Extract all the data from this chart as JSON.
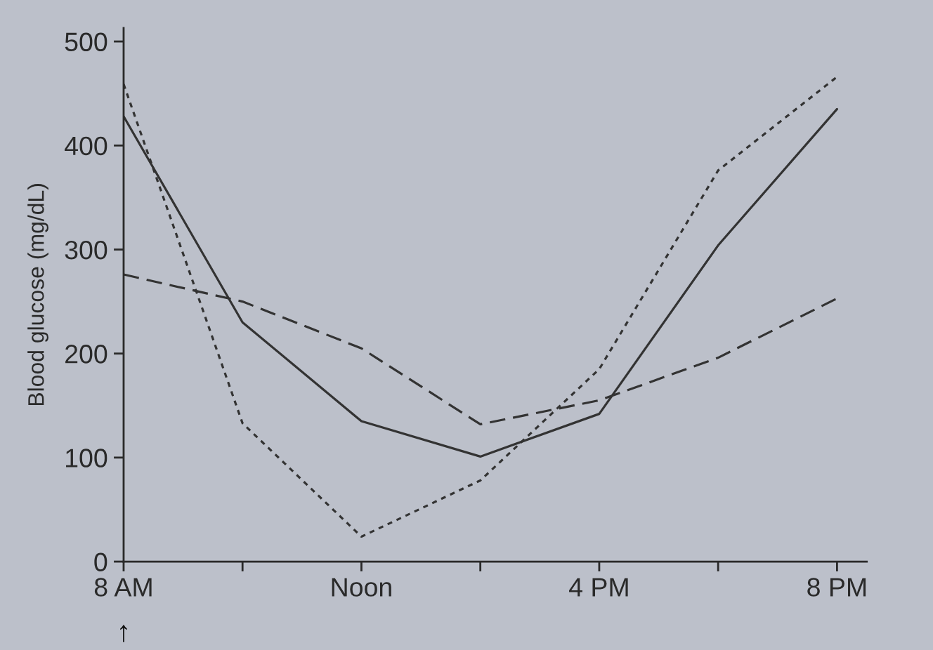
{
  "chart_data": {
    "type": "line",
    "ylabel": "Blood glucose (mg/dL)",
    "categories": [
      "8 AM",
      null,
      "Noon",
      null,
      "4 PM",
      null,
      "8 PM"
    ],
    "series": [
      {
        "color": "#333333",
        "line_style": "solid",
        "values": [
          428,
          230,
          135,
          101,
          142,
          304,
          435
        ]
      },
      {
        "color": "#333333",
        "line_style": "dashed",
        "values": [
          276,
          250,
          205,
          132,
          155,
          196,
          253
        ]
      },
      {
        "color": "#333333",
        "line_style": "dotted",
        "values": [
          459,
          133,
          24,
          78,
          185,
          376,
          466
        ]
      }
    ],
    "ylim": [
      0,
      513
    ],
    "yticks": [
      0,
      100,
      200,
      300,
      400,
      500
    ],
    "annotations": [
      "↑"
    ],
    "grid": false,
    "marker": "none"
  }
}
